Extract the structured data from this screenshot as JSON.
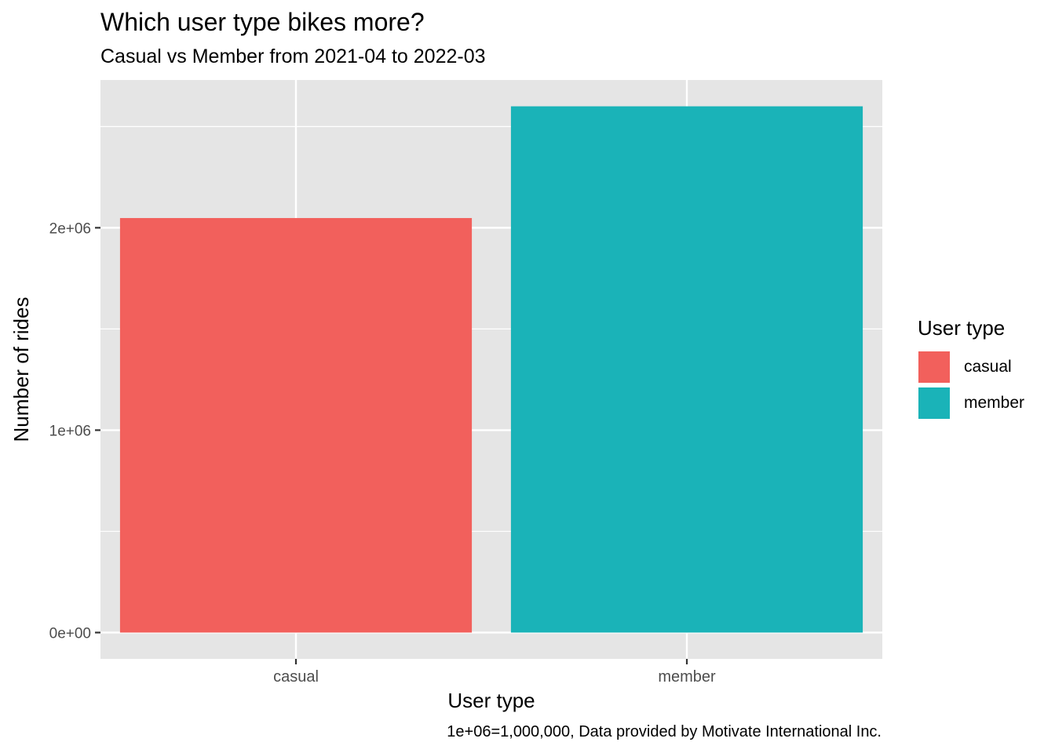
{
  "chart_data": {
    "type": "bar",
    "title": "Which user type bikes more?",
    "subtitle": "Casual vs Member from 2021-04 to 2022-03",
    "xlabel": "User type",
    "ylabel": "Number of rides",
    "categories": [
      "casual",
      "member"
    ],
    "values": [
      2048000,
      2600000
    ],
    "ylim": [
      -130000,
      2730000
    ],
    "yticks": [
      0,
      1000000,
      2000000
    ],
    "ytick_labels": [
      "0e+00",
      "1e+06",
      "2e+06"
    ],
    "grid": true,
    "legend": {
      "title": "User type",
      "placement": "right",
      "items": [
        "casual",
        "member"
      ]
    },
    "colors": [
      "#F8766D",
      "#00BFC4"
    ],
    "bar_colors_rendered": [
      "#F2605C",
      "#1AB3B8"
    ],
    "caption": "1e+06=1,000,000, Data provided by Motivate International Inc."
  }
}
